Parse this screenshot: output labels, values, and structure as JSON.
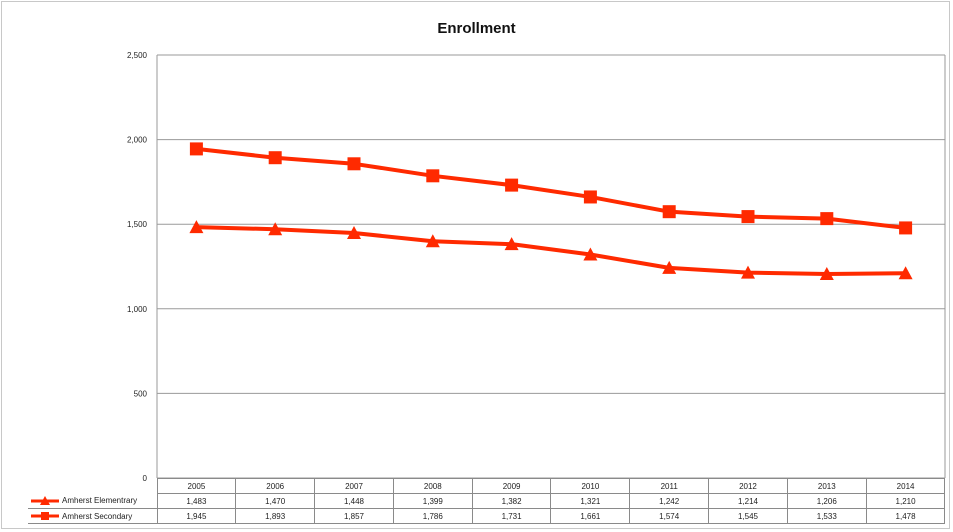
{
  "chart_data": {
    "type": "line",
    "title": "Enrollment",
    "xlabel": "",
    "ylabel": "",
    "x": [
      "2005",
      "2006",
      "2007",
      "2008",
      "2009",
      "2010",
      "2011",
      "2012",
      "2013",
      "2014"
    ],
    "ylim": [
      0,
      2500
    ],
    "yticks": [
      "0",
      "500",
      "1,000",
      "1,500",
      "2,000",
      "2,500"
    ],
    "grid": true,
    "legend": "bottom data table",
    "series": [
      {
        "name": "Amherst Elementrary",
        "marker": "triangle",
        "color": "#ff2a00",
        "values": [
          1483,
          1470,
          1448,
          1399,
          1382,
          1321,
          1242,
          1214,
          1206,
          1210
        ],
        "labels": [
          "1,483",
          "1,470",
          "1,448",
          "1,399",
          "1,382",
          "1,321",
          "1,242",
          "1,214",
          "1,206",
          "1,210"
        ]
      },
      {
        "name": "Amherst Secondary",
        "marker": "square",
        "color": "#ff2a00",
        "values": [
          1945,
          1893,
          1857,
          1786,
          1731,
          1661,
          1574,
          1545,
          1533,
          1478
        ],
        "labels": [
          "1,945",
          "1,893",
          "1,857",
          "1,786",
          "1,731",
          "1,661",
          "1,574",
          "1,545",
          "1,533",
          "1,478"
        ]
      }
    ]
  }
}
